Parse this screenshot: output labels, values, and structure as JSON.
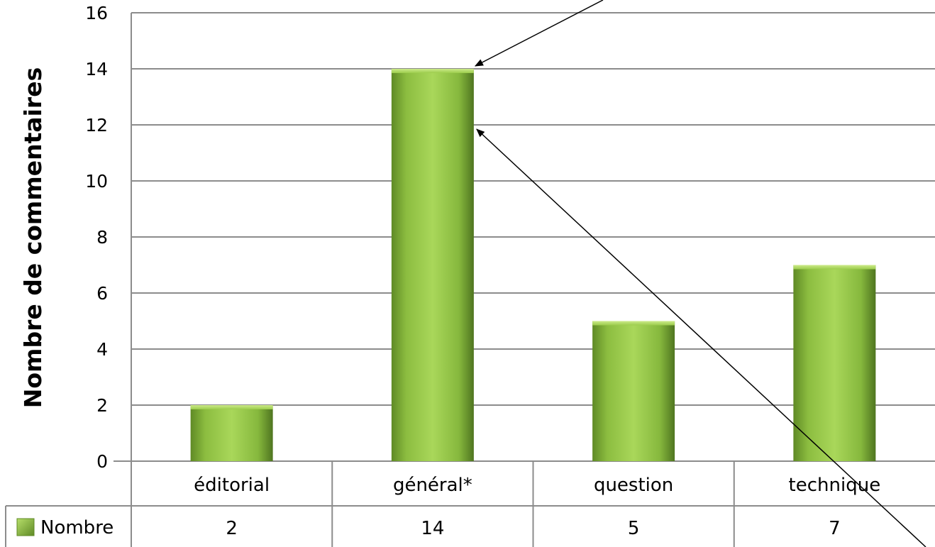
{
  "chart_data": {
    "type": "bar",
    "categories": [
      "éditorial",
      "général*",
      "question",
      "technique"
    ],
    "series": [
      {
        "name": "Nombre",
        "values": [
          2,
          14,
          5,
          7
        ]
      }
    ],
    "value_labels": [
      "2",
      "14",
      "5",
      "7"
    ],
    "xlabel": "",
    "ylabel": "Nombre de commentaires",
    "ylim": [
      0,
      16
    ],
    "yticks": [
      0,
      2,
      4,
      6,
      8,
      10,
      12,
      14,
      16
    ],
    "grid": true,
    "legend": "data-table-left",
    "data_table": true,
    "bar_color": "#8fc144",
    "bar_color_light": "#b9df6f",
    "bar_color_dark": "#557a22",
    "grid_color": "#8c8c8c",
    "annotations": [
      {
        "type": "arrow",
        "points_to": "top of bar général*"
      },
      {
        "type": "arrow",
        "points_to": "bar général* at value 12"
      }
    ]
  }
}
